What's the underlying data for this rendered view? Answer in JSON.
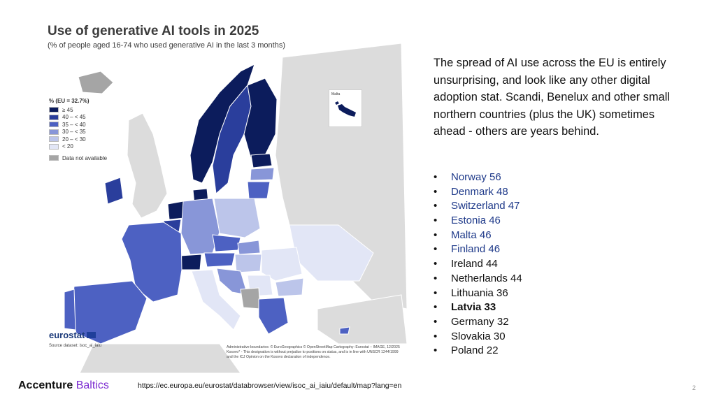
{
  "map": {
    "title": "Use of generative AI tools in 2025",
    "subtitle": "(% of people aged 16-74 who used generative AI in the last 3 months)",
    "legend": {
      "title": "% (EU = 32.7%)",
      "classes": [
        {
          "label": "≥ 45",
          "color": "#0c1c5c"
        },
        {
          "label": "40 – < 45",
          "color": "#2a3e9c"
        },
        {
          "label": "35 – < 40",
          "color": "#4d61c2"
        },
        {
          "label": "30 – < 35",
          "color": "#8896d8"
        },
        {
          "label": "20 – < 30",
          "color": "#bcc5ea"
        },
        {
          "label": "< 20",
          "color": "#e2e6f6"
        }
      ],
      "not_available": {
        "label": "Data not available",
        "color": "#a5a5a5"
      }
    },
    "inset_label": "Malta",
    "logo_text": "eurostat",
    "source": "Source dataset: isoc_ai_iaiu",
    "footnote": "Administrative boundaries: © EuroGeographics © OpenStreetMap Cartography: Eurostat – IMAGE, 12/2025 Kosovo* - This designation is without prejudice to positions on status, and is in line with UNSCR 1244/1999 and the ICJ Opinion on the Kosovo declaration of independence.",
    "colors": {
      "background_land": "#dcdcdc",
      "sea": "#ffffff",
      "no_data": "#a5a5a5"
    }
  },
  "summary": "The spread of AI use across the EU is entirely unsurprising, and look like any other digital adoption stat. Scandi, Benelux and other small northern countries (plus the UK) sometimes ahead - others are years behind.",
  "countries": [
    {
      "text": "Norway 56",
      "style": "blue"
    },
    {
      "text": "Denmark 48",
      "style": "blue"
    },
    {
      "text": "Switzerland 47",
      "style": "blue"
    },
    {
      "text": "Estonia 46",
      "style": "blue"
    },
    {
      "text": "Malta 46",
      "style": "blue"
    },
    {
      "text": "Finland 46",
      "style": "blue"
    },
    {
      "text": "Ireland 44",
      "style": "black"
    },
    {
      "text": "Netherlands 44",
      "style": "black"
    },
    {
      "text": "Lithuania 36",
      "style": "black"
    },
    {
      "text": "Latvia 33",
      "style": "bold"
    },
    {
      "text": "Germany 32",
      "style": "black"
    },
    {
      "text": "Slovakia 30",
      "style": "black"
    },
    {
      "text": "Poland 22",
      "style": "black"
    }
  ],
  "footer": {
    "brand": "Accenture",
    "brand_accent": "Baltics",
    "url": "https://ec.europa.eu/eurostat/databrowser/view/isoc_ai_iaiu/default/map?lang=en",
    "page_number": "2"
  }
}
